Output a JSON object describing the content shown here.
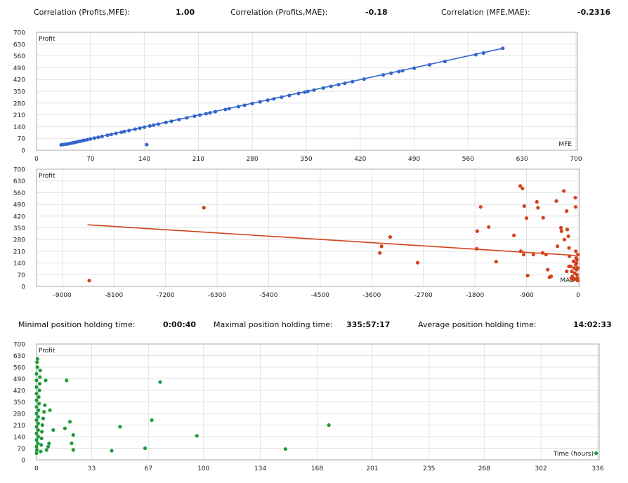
{
  "stats": {
    "corr_profit_mfe_label": "Correlation (Profits,MFE):",
    "corr_profit_mfe_value": "1.00",
    "corr_profit_mae_label": "Correlation (Profits,MAE):",
    "corr_profit_mae_value": "-0.18",
    "corr_mfe_mae_label": "Correlation (MFE,MAE):",
    "corr_mfe_mae_value": "-0.2316",
    "min_hold_label": "Minimal position holding time:",
    "min_hold_value": "0:00:40",
    "max_hold_label": "Maximal position holding time:",
    "max_hold_value": "335:57:17",
    "avg_hold_label": "Average position holding time:",
    "avg_hold_value": "14:02:33"
  },
  "colors": {
    "mfe": "#3366cc",
    "mae": "#d4421a",
    "time": "#1f9a3a",
    "grid": "#e2e2e2",
    "border": "#a9a9a9"
  },
  "chart_data": [
    {
      "id": "mfe",
      "type": "scatter",
      "title": "",
      "ylabel": "Profit",
      "xlabel": "MFE",
      "xlim": [
        0,
        700
      ],
      "ylim": [
        0,
        700
      ],
      "xticks": [
        0,
        70,
        140,
        210,
        280,
        350,
        420,
        490,
        560,
        630,
        700
      ],
      "xtick_labels": [
        "0",
        "70",
        "140",
        "210",
        "280",
        "350",
        "420",
        "490",
        "560",
        "630",
        "700"
      ],
      "yticks": [
        0,
        70,
        140,
        210,
        280,
        350,
        420,
        490,
        560,
        630,
        700
      ],
      "ytick_labels": [
        "0",
        "70",
        "140",
        "210",
        "280",
        "350",
        "420",
        "490",
        "560",
        "630",
        "700"
      ],
      "trend": [
        [
          32,
          30
        ],
        [
          605,
          605
        ]
      ],
      "points": [
        [
          32,
          32
        ],
        [
          35,
          34
        ],
        [
          38,
          36
        ],
        [
          41,
          38
        ],
        [
          44,
          41
        ],
        [
          47,
          44
        ],
        [
          50,
          47
        ],
        [
          53,
          50
        ],
        [
          56,
          53
        ],
        [
          59,
          56
        ],
        [
          62,
          59
        ],
        [
          66,
          63
        ],
        [
          70,
          67
        ],
        [
          75,
          72
        ],
        [
          80,
          77
        ],
        [
          85,
          82
        ],
        [
          92,
          89
        ],
        [
          97,
          94
        ],
        [
          103,
          100
        ],
        [
          110,
          107
        ],
        [
          114,
          111
        ],
        [
          120,
          117
        ],
        [
          128,
          125
        ],
        [
          134,
          131
        ],
        [
          140,
          137
        ],
        [
          147,
          144
        ],
        [
          152,
          149
        ],
        [
          158,
          155
        ],
        [
          168,
          165
        ],
        [
          175,
          172
        ],
        [
          185,
          182
        ],
        [
          195,
          192
        ],
        [
          205,
          202
        ],
        [
          212,
          209
        ],
        [
          220,
          217
        ],
        [
          225,
          222
        ],
        [
          232,
          229
        ],
        [
          245,
          242
        ],
        [
          250,
          247
        ],
        [
          262,
          259
        ],
        [
          270,
          267
        ],
        [
          280,
          277
        ],
        [
          290,
          287
        ],
        [
          300,
          297
        ],
        [
          308,
          305
        ],
        [
          318,
          315
        ],
        [
          328,
          325
        ],
        [
          340,
          337
        ],
        [
          348,
          345
        ],
        [
          352,
          349
        ],
        [
          360,
          357
        ],
        [
          372,
          369
        ],
        [
          382,
          379
        ],
        [
          392,
          389
        ],
        [
          400,
          397
        ],
        [
          410,
          407
        ],
        [
          425,
          422
        ],
        [
          450,
          447
        ],
        [
          460,
          457
        ],
        [
          470,
          467
        ],
        [
          475,
          472
        ],
        [
          490,
          487
        ],
        [
          510,
          507
        ],
        [
          530,
          527
        ],
        [
          570,
          567
        ],
        [
          580,
          577
        ],
        [
          605,
          605
        ],
        [
          143,
          33
        ]
      ]
    },
    {
      "id": "mae",
      "type": "scatter",
      "title": "",
      "ylabel": "Profit",
      "xlabel": "MAE",
      "xlim": [
        -9450,
        0
      ],
      "ylim": [
        0,
        700
      ],
      "xticks": [
        -9000,
        -8100,
        -7200,
        -6300,
        -5400,
        -4500,
        -3600,
        -2700,
        -1800,
        -900,
        0
      ],
      "xtick_labels": [
        "-9000",
        "-8100",
        "-7200",
        "-6300",
        "-5400",
        "-4500",
        "-3600",
        "-2700",
        "-1800",
        "-900",
        "0"
      ],
      "yticks": [
        0,
        70,
        140,
        210,
        280,
        350,
        420,
        490,
        560,
        630,
        700
      ],
      "ytick_labels": [
        "0",
        "70",
        "140",
        "210",
        "280",
        "350",
        "420",
        "490",
        "560",
        "630",
        "700"
      ],
      "trend": [
        [
          -8560,
          368
        ],
        [
          -40,
          185
        ]
      ],
      "points": [
        [
          -8530,
          35
        ],
        [
          -6530,
          470
        ],
        [
          -3430,
          240
        ],
        [
          -3460,
          200
        ],
        [
          -3280,
          295
        ],
        [
          -2800,
          142
        ],
        [
          -1700,
          475
        ],
        [
          -1760,
          330
        ],
        [
          -1770,
          225
        ],
        [
          -1560,
          355
        ],
        [
          -1430,
          148
        ],
        [
          -1120,
          305
        ],
        [
          -1010,
          600
        ],
        [
          -970,
          585
        ],
        [
          -940,
          480
        ],
        [
          -900,
          408
        ],
        [
          -1000,
          210
        ],
        [
          -950,
          190
        ],
        [
          -880,
          65
        ],
        [
          -780,
          190
        ],
        [
          -720,
          505
        ],
        [
          -700,
          470
        ],
        [
          -620,
          200
        ],
        [
          -610,
          410
        ],
        [
          -560,
          190
        ],
        [
          -530,
          100
        ],
        [
          -500,
          55
        ],
        [
          -470,
          60
        ],
        [
          -380,
          510
        ],
        [
          -360,
          240
        ],
        [
          -300,
          350
        ],
        [
          -290,
          330
        ],
        [
          -250,
          570
        ],
        [
          -240,
          280
        ],
        [
          -200,
          450
        ],
        [
          -190,
          340
        ],
        [
          -170,
          300
        ],
        [
          -160,
          230
        ],
        [
          -150,
          180
        ],
        [
          -130,
          120
        ],
        [
          -110,
          90
        ],
        [
          -100,
          60
        ],
        [
          -90,
          40
        ],
        [
          -80,
          150
        ],
        [
          -70,
          110
        ],
        [
          -60,
          80
        ],
        [
          -50,
          530
        ],
        [
          -45,
          475
        ],
        [
          -40,
          210
        ],
        [
          -35,
          170
        ],
        [
          -30,
          140
        ],
        [
          -25,
          100
        ],
        [
          -20,
          70
        ],
        [
          -15,
          50
        ],
        [
          -10,
          35
        ],
        [
          -5,
          190
        ],
        [
          -60,
          45
        ],
        [
          -120,
          50
        ],
        [
          -160,
          120
        ],
        [
          -200,
          90
        ],
        [
          -40,
          130
        ],
        [
          -20,
          160
        ],
        [
          -10,
          110
        ]
      ]
    },
    {
      "id": "time",
      "type": "scatter",
      "title": "",
      "ylabel": "Profit",
      "xlabel": "Time (hours)",
      "xlim": [
        0,
        336
      ],
      "ylim": [
        0,
        700
      ],
      "xticks": [
        0,
        33,
        67,
        100,
        134,
        168,
        201,
        235,
        268,
        302,
        336
      ],
      "xtick_labels": [
        "0",
        "33",
        "67",
        "100",
        "134",
        "168",
        "201",
        "235",
        "268",
        "302",
        "336"
      ],
      "yticks": [
        0,
        70,
        140,
        210,
        280,
        350,
        420,
        490,
        560,
        630,
        700
      ],
      "ytick_labels": [
        "0",
        "70",
        "140",
        "210",
        "280",
        "350",
        "420",
        "490",
        "560",
        "630",
        "700"
      ],
      "trend": [],
      "points": [
        [
          0,
          40
        ],
        [
          0,
          80
        ],
        [
          0,
          120
        ],
        [
          0,
          160
        ],
        [
          0,
          200
        ],
        [
          0,
          240
        ],
        [
          0,
          280
        ],
        [
          0,
          320
        ],
        [
          0,
          360
        ],
        [
          0,
          400
        ],
        [
          0,
          440
        ],
        [
          0,
          480
        ],
        [
          0,
          520
        ],
        [
          0.5,
          560
        ],
        [
          0.3,
          590
        ],
        [
          0.6,
          610
        ],
        [
          0.2,
          60
        ],
        [
          0.8,
          100
        ],
        [
          1,
          140
        ],
        [
          1,
          180
        ],
        [
          1,
          220
        ],
        [
          1,
          260
        ],
        [
          1.2,
          300
        ],
        [
          1.5,
          340
        ],
        [
          1.3,
          380
        ],
        [
          1.7,
          420
        ],
        [
          1.9,
          460
        ],
        [
          2,
          500
        ],
        [
          2.2,
          540
        ],
        [
          2.5,
          50
        ],
        [
          2.8,
          90
        ],
        [
          3,
          130
        ],
        [
          3.2,
          170
        ],
        [
          3.5,
          210
        ],
        [
          4,
          250
        ],
        [
          4.5,
          290
        ],
        [
          5,
          330
        ],
        [
          5.5,
          480
        ],
        [
          6,
          60
        ],
        [
          7,
          80
        ],
        [
          7.5,
          100
        ],
        [
          8,
          300
        ],
        [
          10,
          180
        ],
        [
          17,
          190
        ],
        [
          18,
          480
        ],
        [
          20,
          230
        ],
        [
          21,
          100
        ],
        [
          22,
          60
        ],
        [
          22,
          150
        ],
        [
          45,
          55
        ],
        [
          50,
          200
        ],
        [
          65,
          70
        ],
        [
          69,
          240
        ],
        [
          74,
          470
        ],
        [
          96,
          145
        ],
        [
          149,
          65
        ],
        [
          175,
          210
        ],
        [
          335,
          40
        ]
      ]
    }
  ]
}
